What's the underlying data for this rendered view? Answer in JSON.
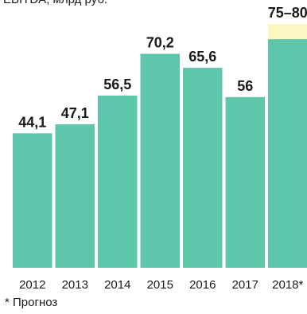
{
  "title": "EBITDA, млрд руб.",
  "footnote": "* Прогноз",
  "colors": {
    "bar": "#5ec6ab",
    "forecast_range": "#fbf6c2"
  },
  "chart_data": {
    "type": "bar",
    "title": "EBITDA, млрд руб.",
    "categories": [
      "2012",
      "2013",
      "2014",
      "2015",
      "2016",
      "2017",
      "2018*"
    ],
    "values": [
      44.1,
      47.1,
      56.5,
      70.2,
      65.6,
      56,
      75
    ],
    "forecast_upper": [
      null,
      null,
      null,
      null,
      null,
      null,
      80
    ],
    "data_labels": [
      "44,1",
      "47,1",
      "56,5",
      "70,2",
      "65,6",
      "56",
      "75–80"
    ],
    "xlabel": "",
    "ylabel": "",
    "ylim": [
      0,
      80
    ],
    "grid": false,
    "legend": "none"
  }
}
